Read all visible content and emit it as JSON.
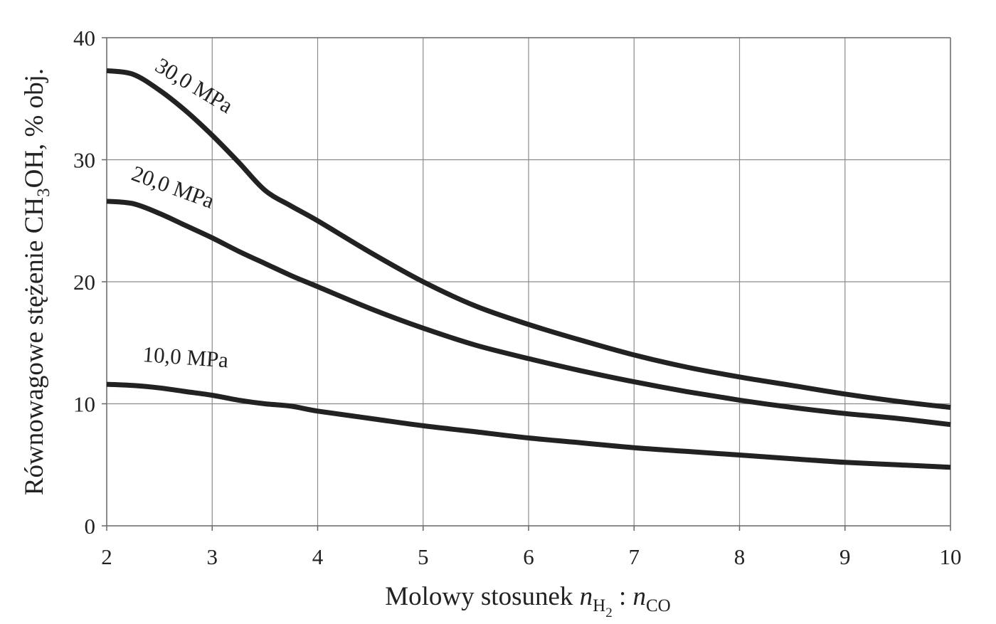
{
  "chart_data": {
    "type": "line",
    "xlabel": {
      "prefix": "Molowy stosunek ",
      "var1": "n",
      "sub1": "H",
      "sub1_sub": "2",
      "separator": " : ",
      "var2": "n",
      "sub2": "CO"
    },
    "ylabel": {
      "prefix": "Równowagowe stężenie CH",
      "sub": "3",
      "suffix": "OH, % obj."
    },
    "xlim": [
      2,
      10
    ],
    "ylim": [
      0,
      40
    ],
    "x_ticks": [
      "2",
      "3",
      "4",
      "5",
      "6",
      "7",
      "8",
      "9",
      "10"
    ],
    "y_ticks": [
      "0",
      "10",
      "20",
      "30",
      "40"
    ],
    "grid": true,
    "series": [
      {
        "name": "30,0 MPa",
        "x": [
          2,
          2.25,
          2.5,
          2.75,
          3,
          3.25,
          3.5,
          3.75,
          4,
          4.5,
          5,
          5.5,
          6,
          6.5,
          7,
          7.5,
          8,
          8.5,
          9,
          9.5,
          10
        ],
        "y": [
          37.3,
          37.0,
          35.7,
          34.0,
          32.0,
          29.8,
          27.5,
          26.2,
          25.0,
          22.4,
          20.0,
          18.0,
          16.5,
          15.2,
          14.0,
          13.0,
          12.2,
          11.5,
          10.8,
          10.2,
          9.7
        ]
      },
      {
        "name": "20,0 MPa",
        "x": [
          2,
          2.25,
          2.5,
          2.75,
          3,
          3.25,
          3.5,
          3.75,
          4,
          4.5,
          5,
          5.5,
          6,
          6.5,
          7,
          7.5,
          8,
          8.5,
          9,
          9.5,
          10
        ],
        "y": [
          26.6,
          26.4,
          25.6,
          24.6,
          23.6,
          22.5,
          21.5,
          20.5,
          19.6,
          17.8,
          16.2,
          14.8,
          13.7,
          12.7,
          11.8,
          11.0,
          10.3,
          9.7,
          9.2,
          8.8,
          8.3
        ]
      },
      {
        "name": "10,0 MPa",
        "x": [
          2,
          2.25,
          2.5,
          2.75,
          3,
          3.25,
          3.5,
          3.75,
          4,
          4.5,
          5,
          5.5,
          6,
          6.5,
          7,
          7.5,
          8,
          8.5,
          9,
          9.5,
          10
        ],
        "y": [
          11.6,
          11.5,
          11.3,
          11.0,
          10.7,
          10.3,
          10.0,
          9.8,
          9.4,
          8.8,
          8.2,
          7.7,
          7.2,
          6.8,
          6.4,
          6.1,
          5.8,
          5.5,
          5.2,
          5.0,
          4.8
        ]
      }
    ]
  }
}
